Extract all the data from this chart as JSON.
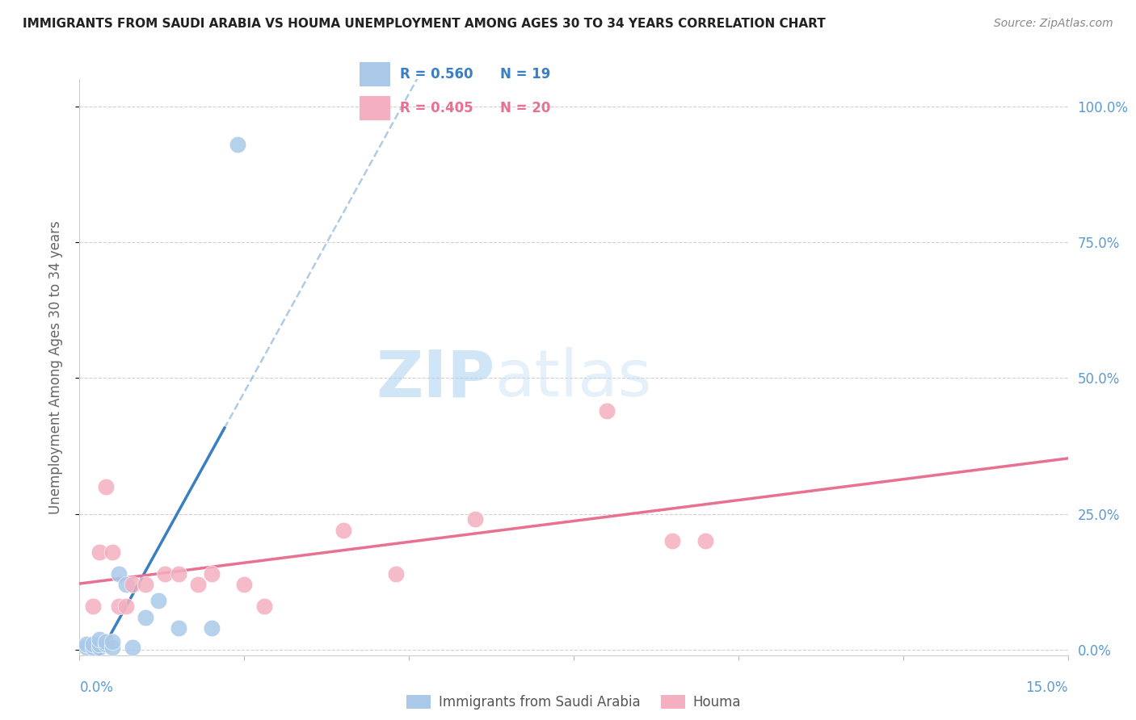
{
  "title": "IMMIGRANTS FROM SAUDI ARABIA VS HOUMA UNEMPLOYMENT AMONG AGES 30 TO 34 YEARS CORRELATION CHART",
  "source": "Source: ZipAtlas.com",
  "ylabel": "Unemployment Among Ages 30 to 34 years",
  "right_tick_color": "#5b9bd5",
  "watermark_zip": "ZIP",
  "watermark_atlas": "atlas",
  "legend_r1": "R = 0.560",
  "legend_n1": "N = 19",
  "legend_r2": "R = 0.405",
  "legend_n2": "N = 20",
  "legend_label1": "Immigrants from Saudi Arabia",
  "legend_label2": "Houma",
  "blue_color": "#aac9e8",
  "pink_color": "#f4afc0",
  "blue_line_color": "#3a7fc1",
  "pink_line_color": "#e87090",
  "blue_scatter": [
    [
      0.001,
      0.005
    ],
    [
      0.001,
      0.01
    ],
    [
      0.002,
      0.005
    ],
    [
      0.002,
      0.01
    ],
    [
      0.003,
      0.005
    ],
    [
      0.003,
      0.01
    ],
    [
      0.003,
      0.02
    ],
    [
      0.004,
      0.01
    ],
    [
      0.004,
      0.015
    ],
    [
      0.005,
      0.005
    ],
    [
      0.005,
      0.015
    ],
    [
      0.006,
      0.14
    ],
    [
      0.007,
      0.12
    ],
    [
      0.008,
      0.005
    ],
    [
      0.01,
      0.06
    ],
    [
      0.012,
      0.09
    ],
    [
      0.015,
      0.04
    ],
    [
      0.02,
      0.04
    ],
    [
      0.024,
      0.93
    ]
  ],
  "pink_scatter": [
    [
      0.002,
      0.08
    ],
    [
      0.003,
      0.18
    ],
    [
      0.004,
      0.3
    ],
    [
      0.005,
      0.18
    ],
    [
      0.006,
      0.08
    ],
    [
      0.007,
      0.08
    ],
    [
      0.008,
      0.12
    ],
    [
      0.01,
      0.12
    ],
    [
      0.013,
      0.14
    ],
    [
      0.015,
      0.14
    ],
    [
      0.018,
      0.12
    ],
    [
      0.02,
      0.14
    ],
    [
      0.025,
      0.12
    ],
    [
      0.028,
      0.08
    ],
    [
      0.04,
      0.22
    ],
    [
      0.048,
      0.14
    ],
    [
      0.06,
      0.24
    ],
    [
      0.08,
      0.44
    ],
    [
      0.09,
      0.2
    ],
    [
      0.095,
      0.2
    ]
  ],
  "xlim": [
    0.0,
    0.15
  ],
  "ylim": [
    -0.01,
    1.05
  ],
  "yticks": [
    0.0,
    0.25,
    0.5,
    0.75,
    1.0
  ],
  "ytick_labels": [
    "0.0%",
    "25.0%",
    "50.0%",
    "75.0%",
    "100.0%"
  ],
  "xtick_positions": [
    0.0,
    0.025,
    0.05,
    0.075,
    0.1,
    0.125,
    0.15
  ],
  "grid_color": "#cccccc",
  "bg_color": "#ffffff"
}
